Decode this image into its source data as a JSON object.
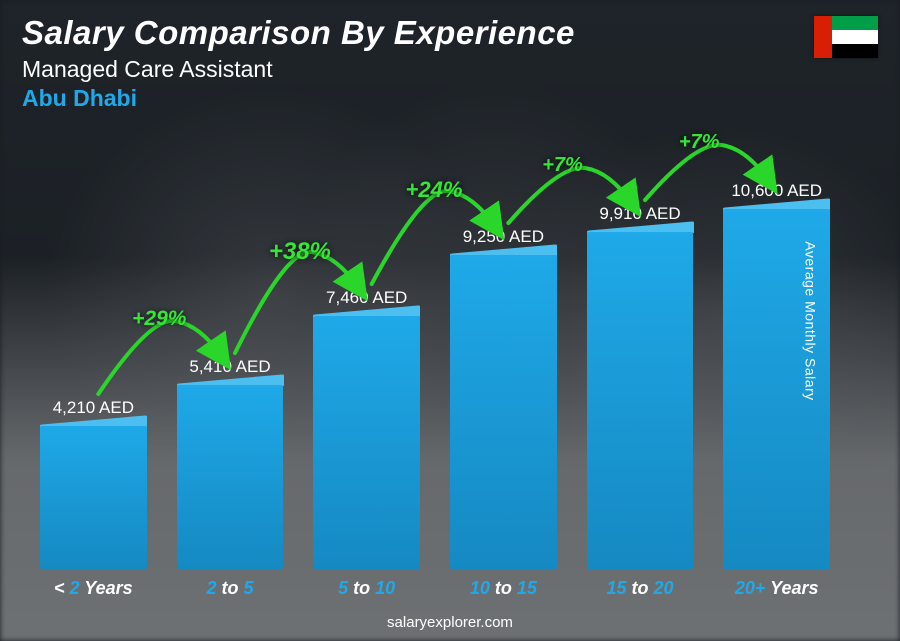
{
  "header": {
    "title": "Salary Comparison By Experience",
    "subtitle": "Managed Care Assistant",
    "location": "Abu Dhabi",
    "location_color": "#1fa9e8"
  },
  "flag": {
    "hoist_color": "#d81e05",
    "stripes": [
      "#009e49",
      "#ffffff",
      "#000000"
    ]
  },
  "chart": {
    "type": "bar",
    "y_axis_label": "Average Monthly Salary",
    "currency": "AED",
    "max_value": 10600,
    "bar_colors": {
      "front": "#1fa9e8",
      "top": "#4dbef0",
      "side": "#1589c2"
    },
    "background_overlay": "rgba(10,15,20,0.55)",
    "bars": [
      {
        "category_html": "<span class='txt'>&lt; </span><span class='num'>2</span><span class='txt'> Years</span>",
        "value": 4210,
        "label": "4,210 AED"
      },
      {
        "category_html": "<span class='num'>2</span><span class='txt'> to </span><span class='num'>5</span>",
        "value": 5410,
        "label": "5,410 AED"
      },
      {
        "category_html": "<span class='num'>5</span><span class='txt'> to </span><span class='num'>10</span>",
        "value": 7460,
        "label": "7,460 AED"
      },
      {
        "category_html": "<span class='num'>10</span><span class='txt'> to </span><span class='num'>15</span>",
        "value": 9250,
        "label": "9,250 AED"
      },
      {
        "category_html": "<span class='num'>15</span><span class='txt'> to </span><span class='num'>20</span>",
        "value": 9910,
        "label": "9,910 AED"
      },
      {
        "category_html": "<span class='num'>20+</span><span class='txt'> Years</span>",
        "value": 10600,
        "label": "10,600 AED"
      }
    ],
    "increases": [
      {
        "label": "+29%",
        "fontsize": 21
      },
      {
        "label": "+38%",
        "fontsize": 24
      },
      {
        "label": "+24%",
        "fontsize": 22
      },
      {
        "label": "+7%",
        "fontsize": 20
      },
      {
        "label": "+7%",
        "fontsize": 20
      }
    ],
    "arrow_color": "#2bd62b",
    "pct_color": "#36e636"
  },
  "footer": {
    "text": "salaryexplorer.com"
  }
}
